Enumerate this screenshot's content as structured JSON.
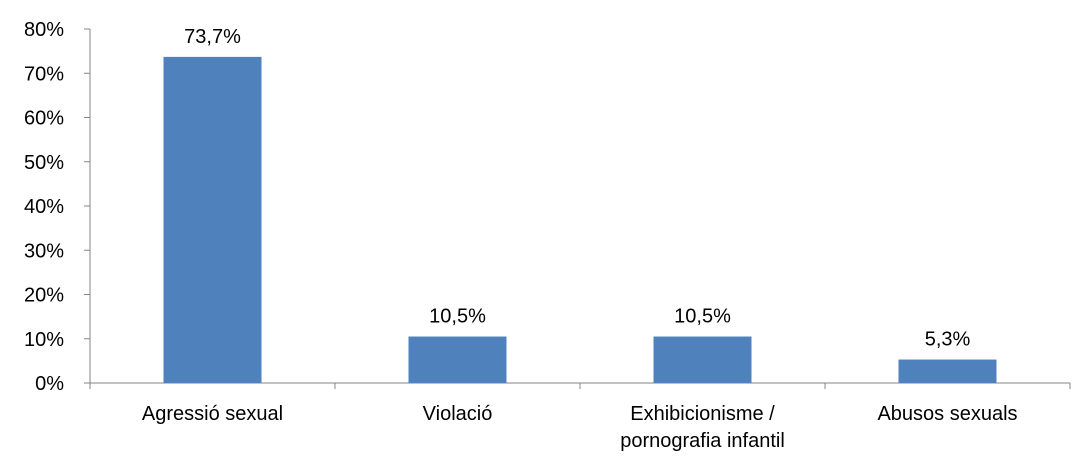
{
  "chart_data": {
    "type": "bar",
    "title": "",
    "xlabel": "",
    "ylabel": "",
    "categories": [
      [
        "Agressió sexual"
      ],
      [
        "Violació"
      ],
      [
        "Exhibicionisme /",
        "pornografia infantil"
      ],
      [
        "Abusos sexuals"
      ]
    ],
    "values": [
      73.7,
      10.5,
      10.5,
      5.3
    ],
    "data_labels": [
      "73,7%",
      "10,5%",
      "10,5%",
      "5,3%"
    ],
    "ylim": [
      0,
      80
    ],
    "yticks": [
      0,
      10,
      20,
      30,
      40,
      50,
      60,
      70,
      80
    ],
    "ytick_labels": [
      "0%",
      "10%",
      "20%",
      "30%",
      "40%",
      "50%",
      "60%",
      "70%",
      "80%"
    ],
    "grid": false,
    "legend": "none",
    "colors": {
      "bar": "#4F81BD",
      "axis": "#868686",
      "text": "#000000"
    }
  }
}
